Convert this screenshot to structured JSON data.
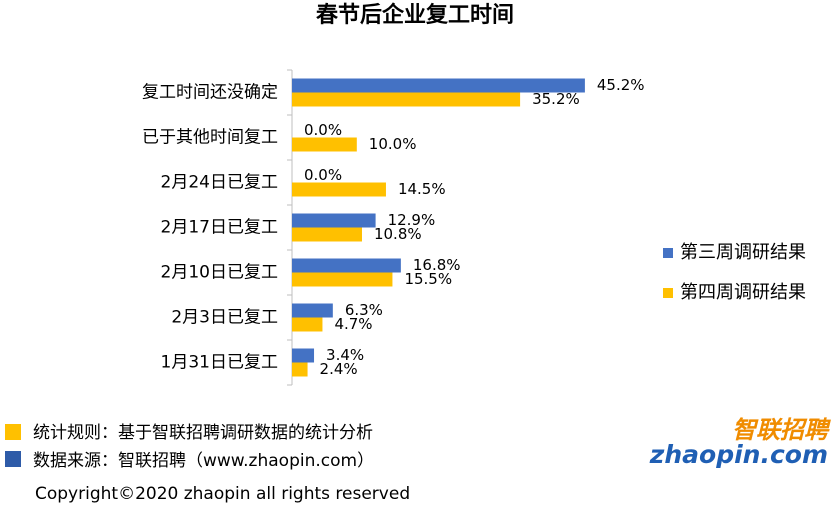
{
  "chart_data": {
    "type": "bar",
    "orientation": "horizontal",
    "title": "春节后企业复工时间",
    "categories": [
      "复工时间还没确定",
      "已于其他时间复工",
      "2月24日已复工",
      "2月17日已复工",
      "2月10日已复工",
      "2月3日已复工",
      "1月31日已复工"
    ],
    "series": [
      {
        "name": "第三周调研结果",
        "color": "#4472c4",
        "values": [
          45.2,
          0.0,
          0.0,
          12.9,
          16.8,
          6.3,
          3.4
        ],
        "value_labels": [
          "45.2%",
          "0.0%",
          "0.0%",
          "12.9%",
          "16.8%",
          "6.3%",
          "3.4%"
        ]
      },
      {
        "name": "第四周调研结果",
        "color": "#ffc000",
        "values": [
          35.2,
          10.0,
          14.5,
          10.8,
          15.5,
          4.7,
          2.4
        ],
        "value_labels": [
          "35.2%",
          "10.0%",
          "14.5%",
          "10.8%",
          "15.5%",
          "4.7%",
          "2.4%"
        ]
      }
    ],
    "xlim": [
      0,
      50
    ],
    "legend": "right"
  },
  "footer": {
    "rule": "统计规则：基于智联招聘调研数据的统计分析",
    "source": "数据来源：智联招聘（www.zhaopin.com）",
    "copyright": "Copyright©2020 zhaopin all rights reserved",
    "logo_cn": "智联招聘",
    "logo_en": "zhaopin.com"
  }
}
